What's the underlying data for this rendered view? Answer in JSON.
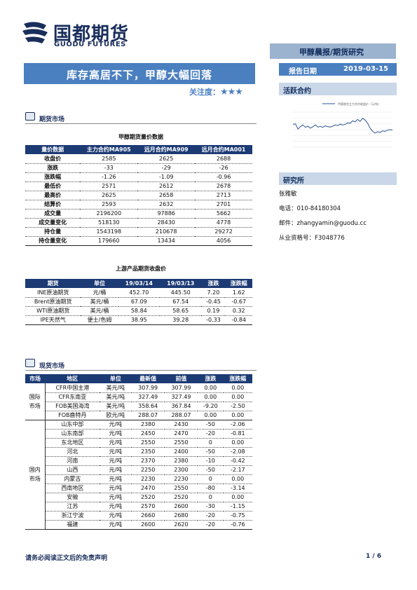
{
  "header": {
    "logo_cn": "国都期货",
    "logo_en": "GUODU FUTURES",
    "report_type": "甲醇晨报/期货研究",
    "title": "库存高居不下，甲醇大幅回落",
    "date_label": "报告日期",
    "date_value": "2019-03-15",
    "focus_label": "关注度：",
    "focus_stars": "★★★"
  },
  "sidebar": {
    "active_contract_heading": "活跃合约",
    "research_heading": "研究所",
    "analyst": "张雅敏",
    "phone": "电话：010-84180304",
    "email": "邮件：zhangyamin@guodu.cc",
    "license": "从业资格号：F3048776"
  },
  "section1": {
    "title": "期货市场",
    "table_caption": "甲醇期货量价数据",
    "headers": [
      "量价数据",
      "主力合约MA905",
      "远月合约MA909",
      "远月合约MA001"
    ],
    "rows": [
      [
        "收盘价",
        "2585",
        "2625",
        "2688"
      ],
      [
        "涨跌",
        "-33",
        "-29",
        "-26"
      ],
      [
        "涨跌幅",
        "-1.26",
        "-1.09",
        "-0.96"
      ],
      [
        "最低价",
        "2571",
        "2612",
        "2678"
      ],
      [
        "最高价",
        "2625",
        "2658",
        "2713"
      ],
      [
        "结算价",
        "2593",
        "2632",
        "2701"
      ],
      [
        "成交量",
        "2196200",
        "97886",
        "5662"
      ],
      [
        "成交量变化",
        "518130",
        "28430",
        "4778"
      ],
      [
        "持仓量",
        "1543198",
        "210678",
        "29272"
      ],
      [
        "持仓量变化",
        "179660",
        "13434",
        "4056"
      ]
    ],
    "upstream_caption": "上游产品期货收盘价",
    "upstream_headers": [
      "期货",
      "单位",
      "19/03/14",
      "19/03/13",
      "涨跌",
      "涨跌幅"
    ],
    "upstream_rows": [
      [
        "INE原油期货",
        "元/桶",
        "452.70",
        "445.50",
        "7.20",
        "1.62"
      ],
      [
        "Brent原油期货",
        "美元/桶",
        "67.09",
        "67.54",
        "-0.45",
        "-0.67"
      ],
      [
        "WTI原油期货",
        "美元/桶",
        "58.84",
        "58.65",
        "0.19",
        "0.32"
      ],
      [
        "IPE天然气",
        "便士/色姆",
        "38.95",
        "39.28",
        "-0.33",
        "-0.84"
      ]
    ]
  },
  "section2": {
    "title": "现货市场",
    "headers": [
      "市场",
      "地区",
      "单位",
      "最新值",
      "前值",
      "涨跌",
      "涨跌幅"
    ],
    "intl_group": "国际市场",
    "intl_rows": [
      [
        "CFR中国主港",
        "美元/吨",
        "307.99",
        "307.99",
        "0.00",
        "0.00"
      ],
      [
        "CFR东南亚",
        "美元/吨",
        "327.49",
        "327.49",
        "0.00",
        "0.00"
      ],
      [
        "FOB美国海湾",
        "美元/吨",
        "358.64",
        "367.84",
        "-9.20",
        "-2.50"
      ],
      [
        "FOB鹿特丹",
        "欧元/吨",
        "288.07",
        "288.07",
        "0.00",
        "0.00"
      ]
    ],
    "dom_group": "国内市场",
    "dom_rows": [
      [
        "山东中部",
        "元/吨",
        "2380",
        "2430",
        "-50",
        "-2.06"
      ],
      [
        "山东南部",
        "元/吨",
        "2450",
        "2470",
        "-20",
        "-0.81"
      ],
      [
        "东北地区",
        "元/吨",
        "2550",
        "2550",
        "0",
        "0.00"
      ],
      [
        "河北",
        "元/吨",
        "2350",
        "2400",
        "-50",
        "-2.08"
      ],
      [
        "河南",
        "元/吨",
        "2370",
        "2380",
        "-10",
        "-0.42"
      ],
      [
        "山西",
        "元/吨",
        "2250",
        "2300",
        "-50",
        "-2.17"
      ],
      [
        "内蒙古",
        "元/吨",
        "2230",
        "2230",
        "0",
        "0.00"
      ],
      [
        "西南地区",
        "元/吨",
        "2470",
        "2550",
        "-80",
        "-3.14"
      ],
      [
        "安徽",
        "元/吨",
        "2520",
        "2520",
        "0",
        "0.00"
      ],
      [
        "江苏",
        "元/吨",
        "2570",
        "2600",
        "-30",
        "-1.15"
      ],
      [
        "浙江宁波",
        "元/吨",
        "2660",
        "2680",
        "-20",
        "-0.75"
      ],
      [
        "福建",
        "元/吨",
        "2600",
        "2620",
        "-20",
        "-0.76"
      ]
    ]
  },
  "footer": {
    "disclaimer": "请务必阅读正文后的免责声明",
    "page": "1 / 6"
  },
  "colors": {
    "brand": "#1a2e5c",
    "accent": "#4a7fc0",
    "table_header": "#1c3a74"
  },
  "chart_data": {
    "type": "line",
    "series": [
      {
        "values": [
          2780,
          2800,
          2620,
          2700,
          2760,
          2680,
          2720,
          2650,
          2700,
          2760,
          2690,
          2710,
          2680,
          2730,
          2700,
          2690,
          2720,
          2760,
          2740,
          2790,
          2760,
          2780,
          2830,
          2820,
          2900,
          2870,
          2950,
          2880,
          2990,
          2930,
          2820,
          2650,
          2550,
          2480,
          2530,
          2500,
          2560,
          2540,
          2580,
          2600,
          2585
        ]
      }
    ]
  }
}
